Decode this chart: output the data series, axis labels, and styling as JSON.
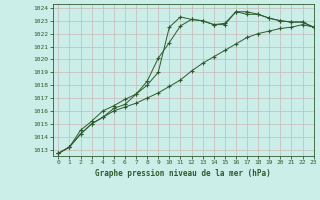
{
  "title": "Graphe pression niveau de la mer (hPa)",
  "bg_color": "#cceee8",
  "grid_color": "#c8b8b8",
  "line_color": "#2d5a2d",
  "xlim": [
    -0.5,
    23
  ],
  "ylim": [
    1012.5,
    1024.3
  ],
  "yticks": [
    1013,
    1014,
    1015,
    1016,
    1017,
    1018,
    1019,
    1020,
    1021,
    1022,
    1023,
    1024
  ],
  "xticks": [
    0,
    1,
    2,
    3,
    4,
    5,
    6,
    7,
    8,
    9,
    10,
    11,
    12,
    13,
    14,
    15,
    16,
    17,
    18,
    19,
    20,
    21,
    22,
    23
  ],
  "line1_x": [
    0,
    1,
    2,
    3,
    4,
    5,
    6,
    7,
    8,
    9,
    10,
    11,
    12,
    13,
    14,
    15,
    16,
    17,
    18,
    19,
    20,
    21,
    22,
    23
  ],
  "line1_y": [
    1012.7,
    1013.2,
    1014.2,
    1015.0,
    1015.5,
    1016.2,
    1016.5,
    1017.3,
    1018.0,
    1019.0,
    1022.5,
    1023.3,
    1023.1,
    1023.0,
    1022.7,
    1022.8,
    1023.7,
    1023.7,
    1023.5,
    1023.2,
    1023.0,
    1022.9,
    1022.9,
    1022.5
  ],
  "line2_x": [
    0,
    1,
    2,
    3,
    4,
    5,
    6,
    7,
    8,
    9,
    10,
    11,
    12,
    13,
    14,
    15,
    16,
    17,
    18,
    19,
    20,
    21,
    22,
    23
  ],
  "line2_y": [
    1012.7,
    1013.2,
    1014.5,
    1015.2,
    1016.0,
    1016.4,
    1016.9,
    1017.3,
    1018.3,
    1020.1,
    1021.3,
    1022.6,
    1023.1,
    1023.0,
    1022.7,
    1022.7,
    1023.7,
    1023.5,
    1023.5,
    1023.2,
    1023.0,
    1022.9,
    1022.9,
    1022.5
  ],
  "line3_x": [
    0,
    1,
    2,
    3,
    4,
    5,
    6,
    7,
    8,
    9,
    10,
    11,
    12,
    13,
    14,
    15,
    16,
    17,
    18,
    19,
    20,
    21,
    22,
    23
  ],
  "line3_y": [
    1012.7,
    1013.2,
    1014.2,
    1015.0,
    1015.5,
    1016.0,
    1016.3,
    1016.6,
    1017.0,
    1017.4,
    1017.9,
    1018.4,
    1019.1,
    1019.7,
    1020.2,
    1020.7,
    1021.2,
    1021.7,
    1022.0,
    1022.2,
    1022.4,
    1022.5,
    1022.7,
    1022.5
  ]
}
